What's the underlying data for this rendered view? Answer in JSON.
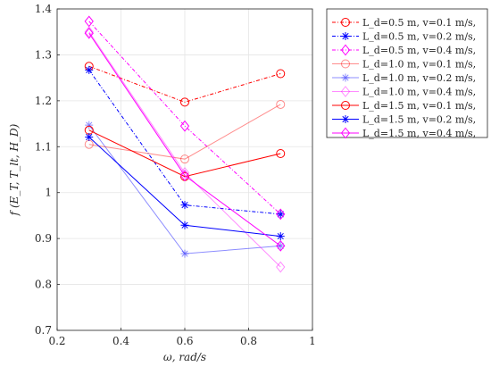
{
  "chart_data": {
    "type": "line",
    "xlabel": "ω, rad/s",
    "ylabel": "f (E_T, T_lt, H_D)",
    "xlim": [
      0.2,
      1.0
    ],
    "ylim": [
      0.7,
      1.4
    ],
    "xticks": [
      "0.2",
      "0.4",
      "0.6",
      "0.8",
      "1"
    ],
    "yticks": [
      "0.7",
      "0.8",
      "0.9",
      "1",
      "1.1",
      "1.2",
      "1.3",
      "1.4"
    ],
    "grid": true,
    "legend_position": "outside right",
    "x": [
      0.3,
      0.6,
      0.9
    ],
    "series": [
      {
        "name": "L_d=0.5 m, v=0.1 m/s,",
        "color": "#ff0000",
        "marker": "circle",
        "dash": "dashdot",
        "opacity": 1.0,
        "values": [
          1.275,
          1.197,
          1.259
        ]
      },
      {
        "name": "L_d=0.5 m, v=0.2 m/s,",
        "color": "#0000ff",
        "marker": "star",
        "dash": "dashdot",
        "opacity": 1.0,
        "values": [
          1.267,
          0.973,
          0.953
        ]
      },
      {
        "name": "L_d=0.5 m, v=0.4 m/s,",
        "color": "#ff00ff",
        "marker": "diamond",
        "dash": "dashdot",
        "opacity": 1.0,
        "values": [
          1.373,
          1.145,
          0.953
        ]
      },
      {
        "name": "L_d=1.0 m, v=0.1 m/s,",
        "color": "#ff0000",
        "marker": "circle",
        "dash": "solid",
        "opacity": 0.45,
        "values": [
          1.105,
          1.073,
          1.192
        ]
      },
      {
        "name": "L_d=1.0 m, v=0.2 m/s,",
        "color": "#0000ff",
        "marker": "star",
        "dash": "solid",
        "opacity": 0.45,
        "values": [
          1.147,
          0.867,
          0.884
        ]
      },
      {
        "name": "L_d=1.0 m, v=0.4 m/s,",
        "color": "#ff00ff",
        "marker": "diamond",
        "dash": "solid",
        "opacity": 0.45,
        "values": [
          1.35,
          1.043,
          0.838
        ]
      },
      {
        "name": "L_d=1.5 m, v=0.1 m/s,",
        "color": "#ff0000",
        "marker": "circle",
        "dash": "solid",
        "opacity": 1.0,
        "values": [
          1.136,
          1.035,
          1.085
        ]
      },
      {
        "name": "L_d=1.5 m, v=0.2 m/s,",
        "color": "#0000ff",
        "marker": "star",
        "dash": "solid",
        "opacity": 1.0,
        "values": [
          1.121,
          0.929,
          0.905
        ]
      },
      {
        "name": "L_d=1.5 m, v=0.4 m/s,",
        "color": "#ff00ff",
        "marker": "diamond",
        "dash": "solid",
        "opacity": 1.0,
        "values": [
          1.347,
          1.037,
          0.884
        ]
      }
    ]
  }
}
